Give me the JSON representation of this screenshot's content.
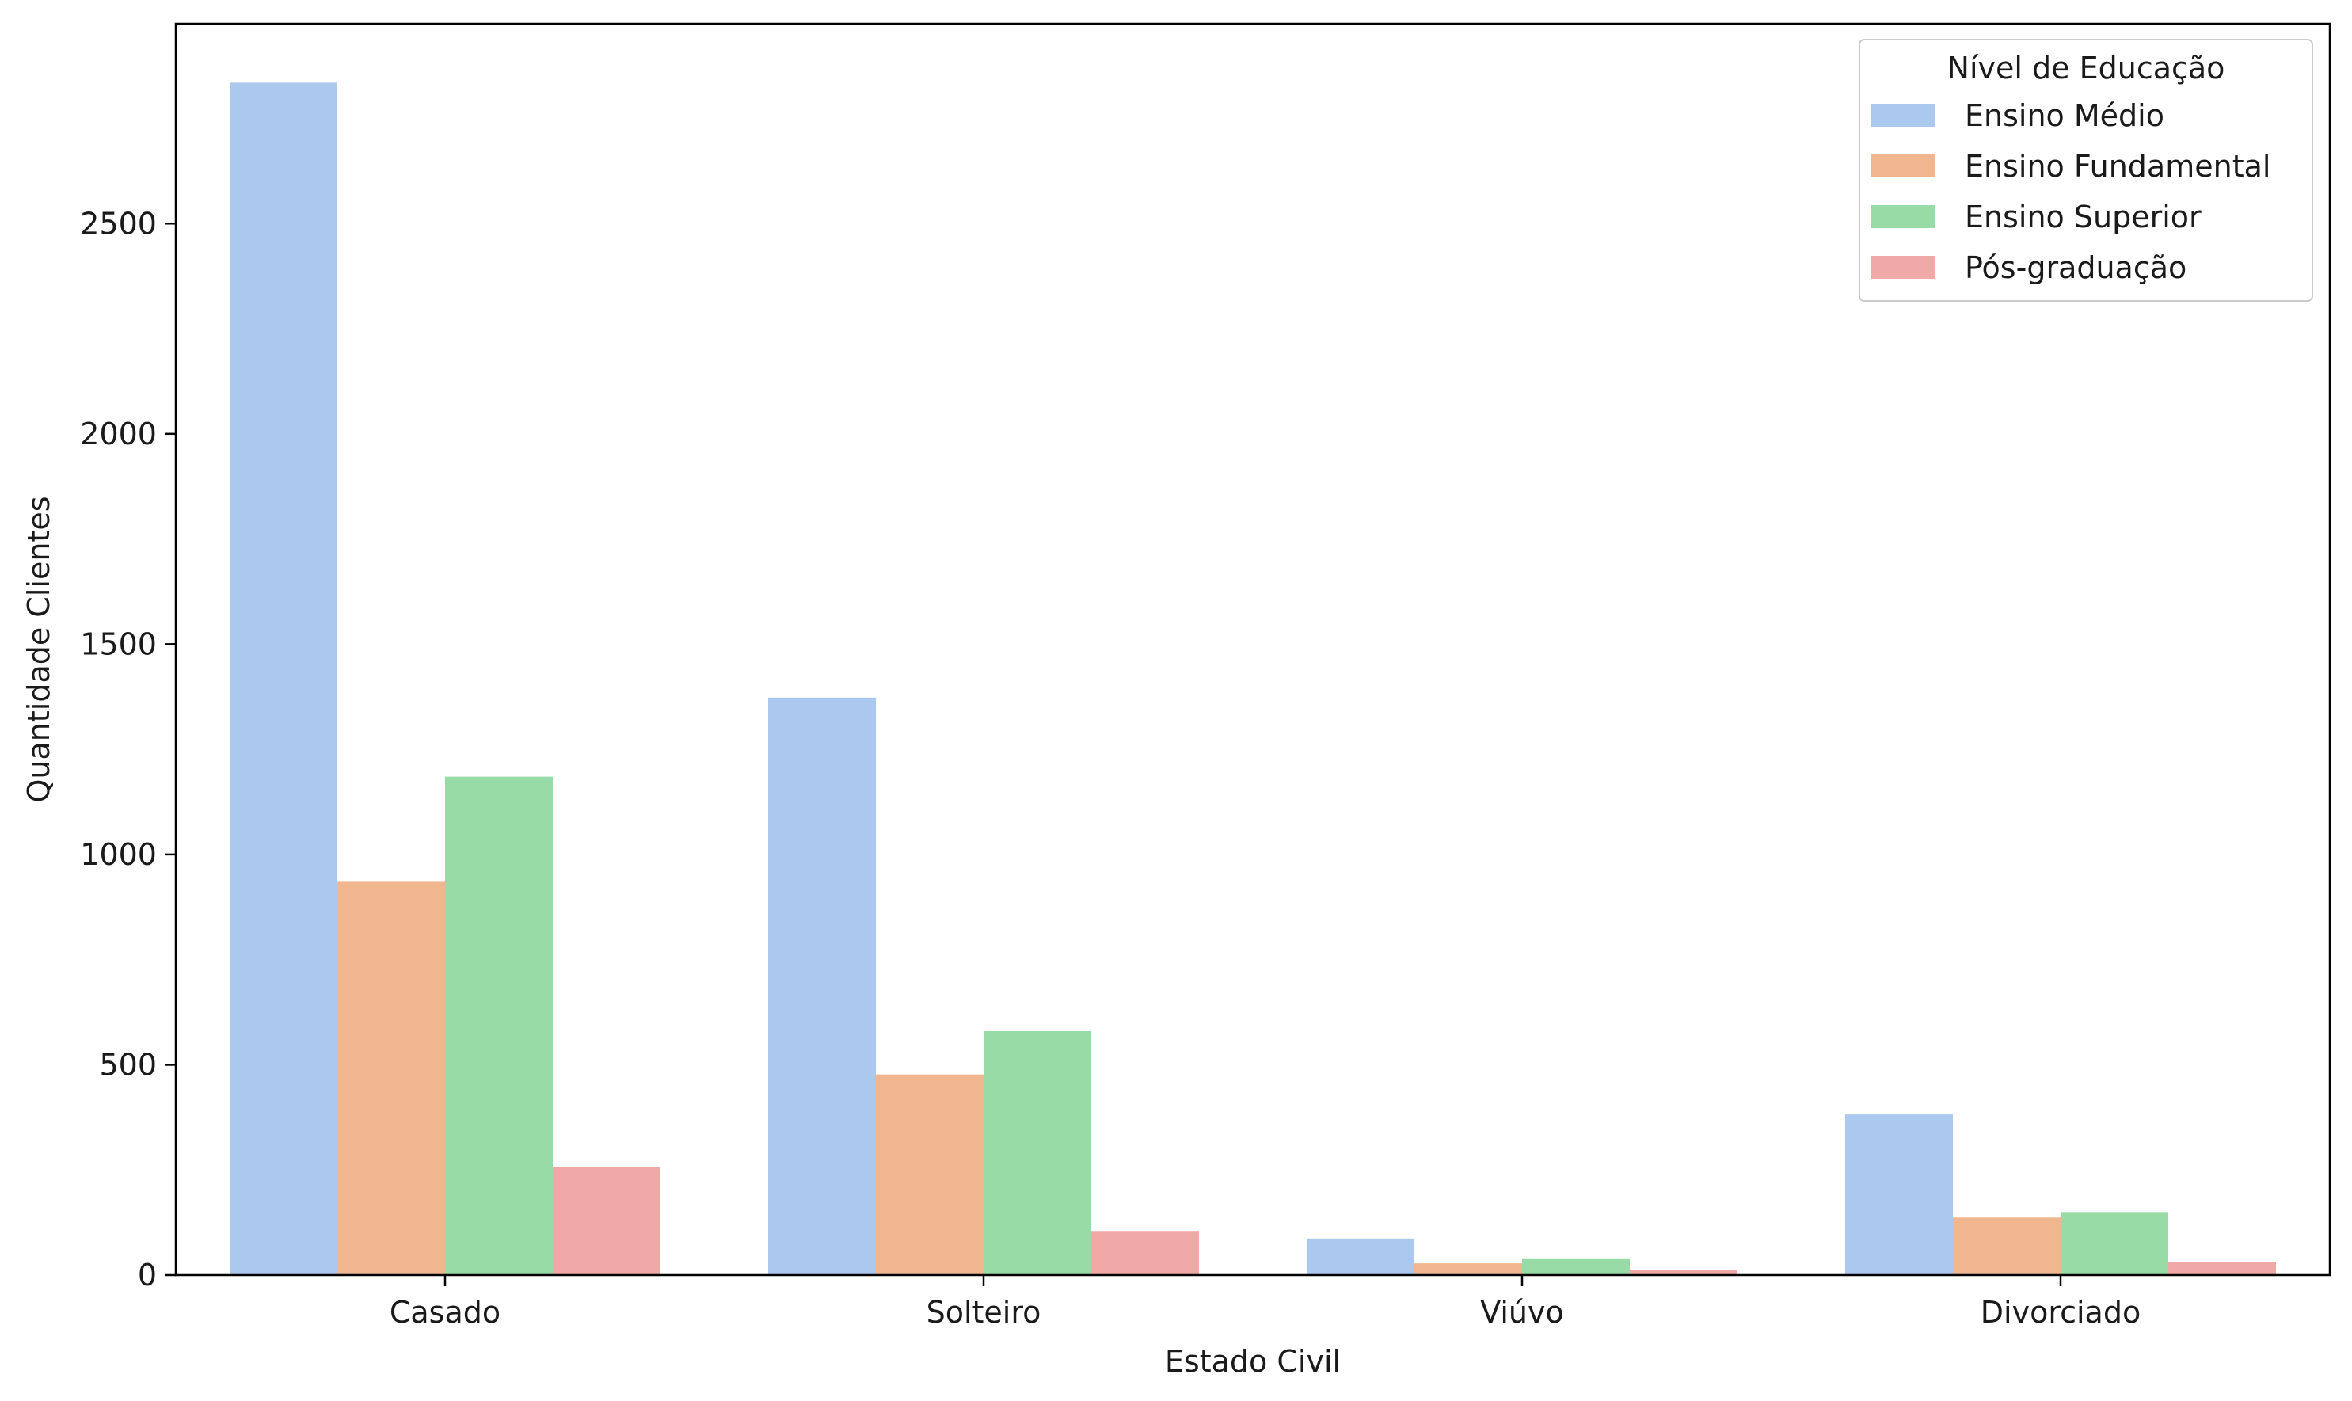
{
  "chart_data": {
    "type": "bar",
    "xlabel": "Estado Civil",
    "ylabel": "Quantidade Clientes",
    "categories": [
      "Casado",
      "Solteiro",
      "Viúvo",
      "Divorciado"
    ],
    "ylim": [
      0,
      2975
    ],
    "yticks": [
      0,
      500,
      1000,
      1500,
      2000,
      2500
    ],
    "series": [
      {
        "name": "Ensino Médio",
        "color": "#abc9ee",
        "values": [
          2835,
          1373,
          87,
          382
        ]
      },
      {
        "name": "Ensino Fundamental",
        "color": "#f0b690",
        "values": [
          935,
          477,
          28,
          137
        ]
      },
      {
        "name": "Ensino Superior",
        "color": "#98dba6",
        "values": [
          1185,
          580,
          38,
          150
        ]
      },
      {
        "name": "Pós-graduação",
        "color": "#f0a9a7",
        "values": [
          258,
          105,
          12,
          32
        ]
      }
    ],
    "legend": {
      "title": "Nível de Educação",
      "position": "top-right"
    },
    "grid": false
  }
}
